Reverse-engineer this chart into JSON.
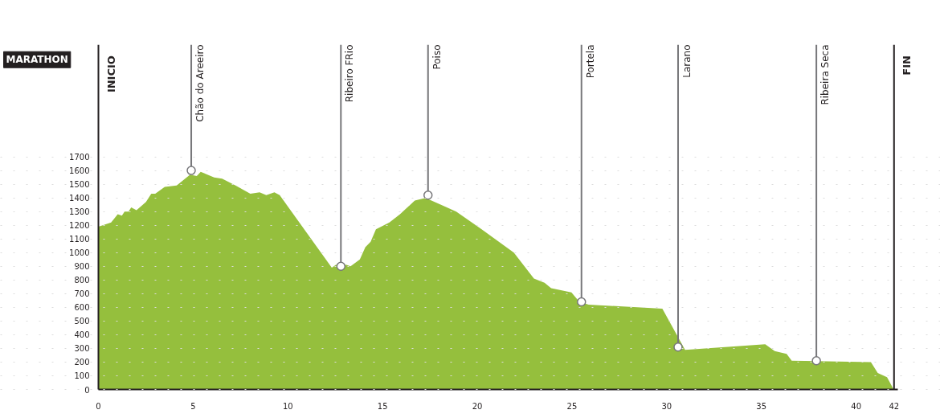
{
  "chart_data": {
    "type": "area",
    "x": [
      0,
      0.67,
      1.02,
      1.24,
      1.38,
      1.59,
      1.73,
      2.01,
      2.51,
      2.79,
      3.0,
      3.5,
      4.13,
      4.84,
      5.19,
      5.4,
      6.11,
      6.53,
      7.24,
      8.02,
      8.51,
      8.86,
      9.29,
      9.57,
      12.32,
      12.53,
      13.1,
      13.31,
      13.8,
      14.09,
      14.37,
      14.65,
      15.36,
      15.92,
      16.7,
      17.27,
      18.89,
      20.23,
      21.93,
      22.99,
      23.55,
      23.9,
      24.97,
      25.39,
      25.88,
      29.77,
      30.97,
      35.2,
      35.7,
      36.33,
      36.6,
      40.78,
      41.14,
      41.63,
      41.98
    ],
    "series": [
      {
        "color": "#95bf3d",
        "values": [
          1190,
          1220,
          1280,
          1270,
          1300,
          1300,
          1330,
          1310,
          1370,
          1430,
          1430,
          1480,
          1490,
          1570,
          1560,
          1590,
          1550,
          1540,
          1490,
          1430,
          1440,
          1420,
          1440,
          1420,
          890,
          910,
          910,
          900,
          950,
          1040,
          1080,
          1170,
          1220,
          1280,
          1380,
          1400,
          1300,
          1170,
          1000,
          810,
          780,
          740,
          710,
          640,
          620,
          590,
          290,
          330,
          280,
          260,
          210,
          200,
          120,
          90,
          0
        ]
      }
    ],
    "xlim": [
      0,
      42.2
    ],
    "ylim": [
      0,
      2520
    ],
    "xticks": [
      0,
      5,
      10,
      15,
      20,
      25,
      30,
      35,
      40,
      42
    ],
    "yticks": [
      0,
      100,
      200,
      300,
      400,
      500,
      600,
      700,
      800,
      900,
      1000,
      1100,
      1200,
      1300,
      1400,
      1500,
      1600,
      1700
    ],
    "grid": "y",
    "ref_lines": [
      {
        "axis": "x",
        "value": 42,
        "label": "FIN",
        "color": "#231f20"
      }
    ],
    "annotations": [
      "MARATHON",
      "INICIO",
      {
        "text": "Chão do Areeiro",
        "x": 4.9,
        "y": 1600
      },
      {
        "text": "Ribeiro FRio",
        "x": 12.8,
        "y": 900
      },
      {
        "text": "Poiso",
        "x": 17.4,
        "y": 1420
      },
      {
        "text": "Portela",
        "x": 25.5,
        "y": 640
      },
      {
        "text": "Larano",
        "x": 30.6,
        "y": 310
      },
      {
        "text": "Ribeira Seca",
        "x": 37.9,
        "y": 210
      }
    ]
  }
}
